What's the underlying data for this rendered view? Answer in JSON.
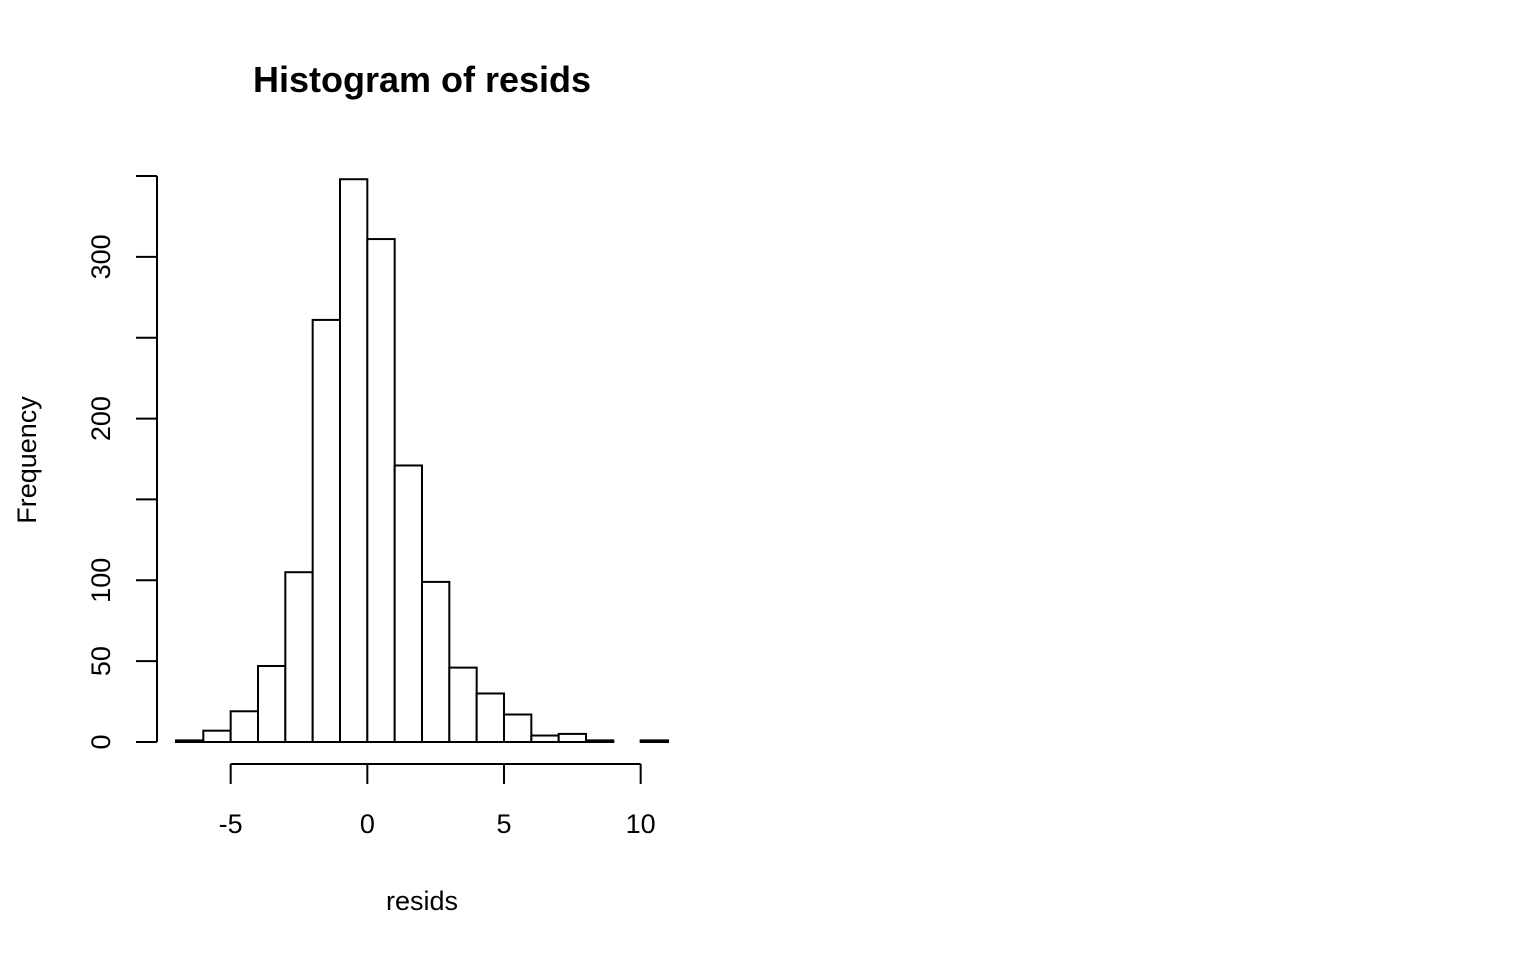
{
  "chart_data": {
    "type": "bar",
    "subtype": "histogram",
    "title": "Histogram of resids",
    "xlabel": "resids",
    "ylabel": "Frequency",
    "bin_edges": [
      -7,
      -6,
      -5,
      -4,
      -3,
      -2,
      -1,
      0,
      1,
      2,
      3,
      4,
      5,
      6,
      7,
      8,
      9,
      10,
      11
    ],
    "counts": [
      1,
      7,
      19,
      47,
      105,
      261,
      348,
      311,
      171,
      99,
      46,
      30,
      17,
      4,
      5,
      1,
      0,
      1
    ],
    "xlim": [
      -7,
      11
    ],
    "ylim": [
      0,
      350
    ],
    "x_ticks": [
      -5,
      0,
      5,
      10
    ],
    "x_tick_labels": [
      "-5",
      "0",
      "5",
      "10"
    ],
    "y_ticks": [
      0,
      50,
      100,
      150,
      200,
      250,
      300,
      350
    ],
    "y_tick_labels": [
      "0",
      "50",
      "100",
      "",
      "200",
      "",
      "300",
      ""
    ],
    "grid": false,
    "bar_fill": "#ffffff",
    "bar_stroke": "#000000"
  }
}
